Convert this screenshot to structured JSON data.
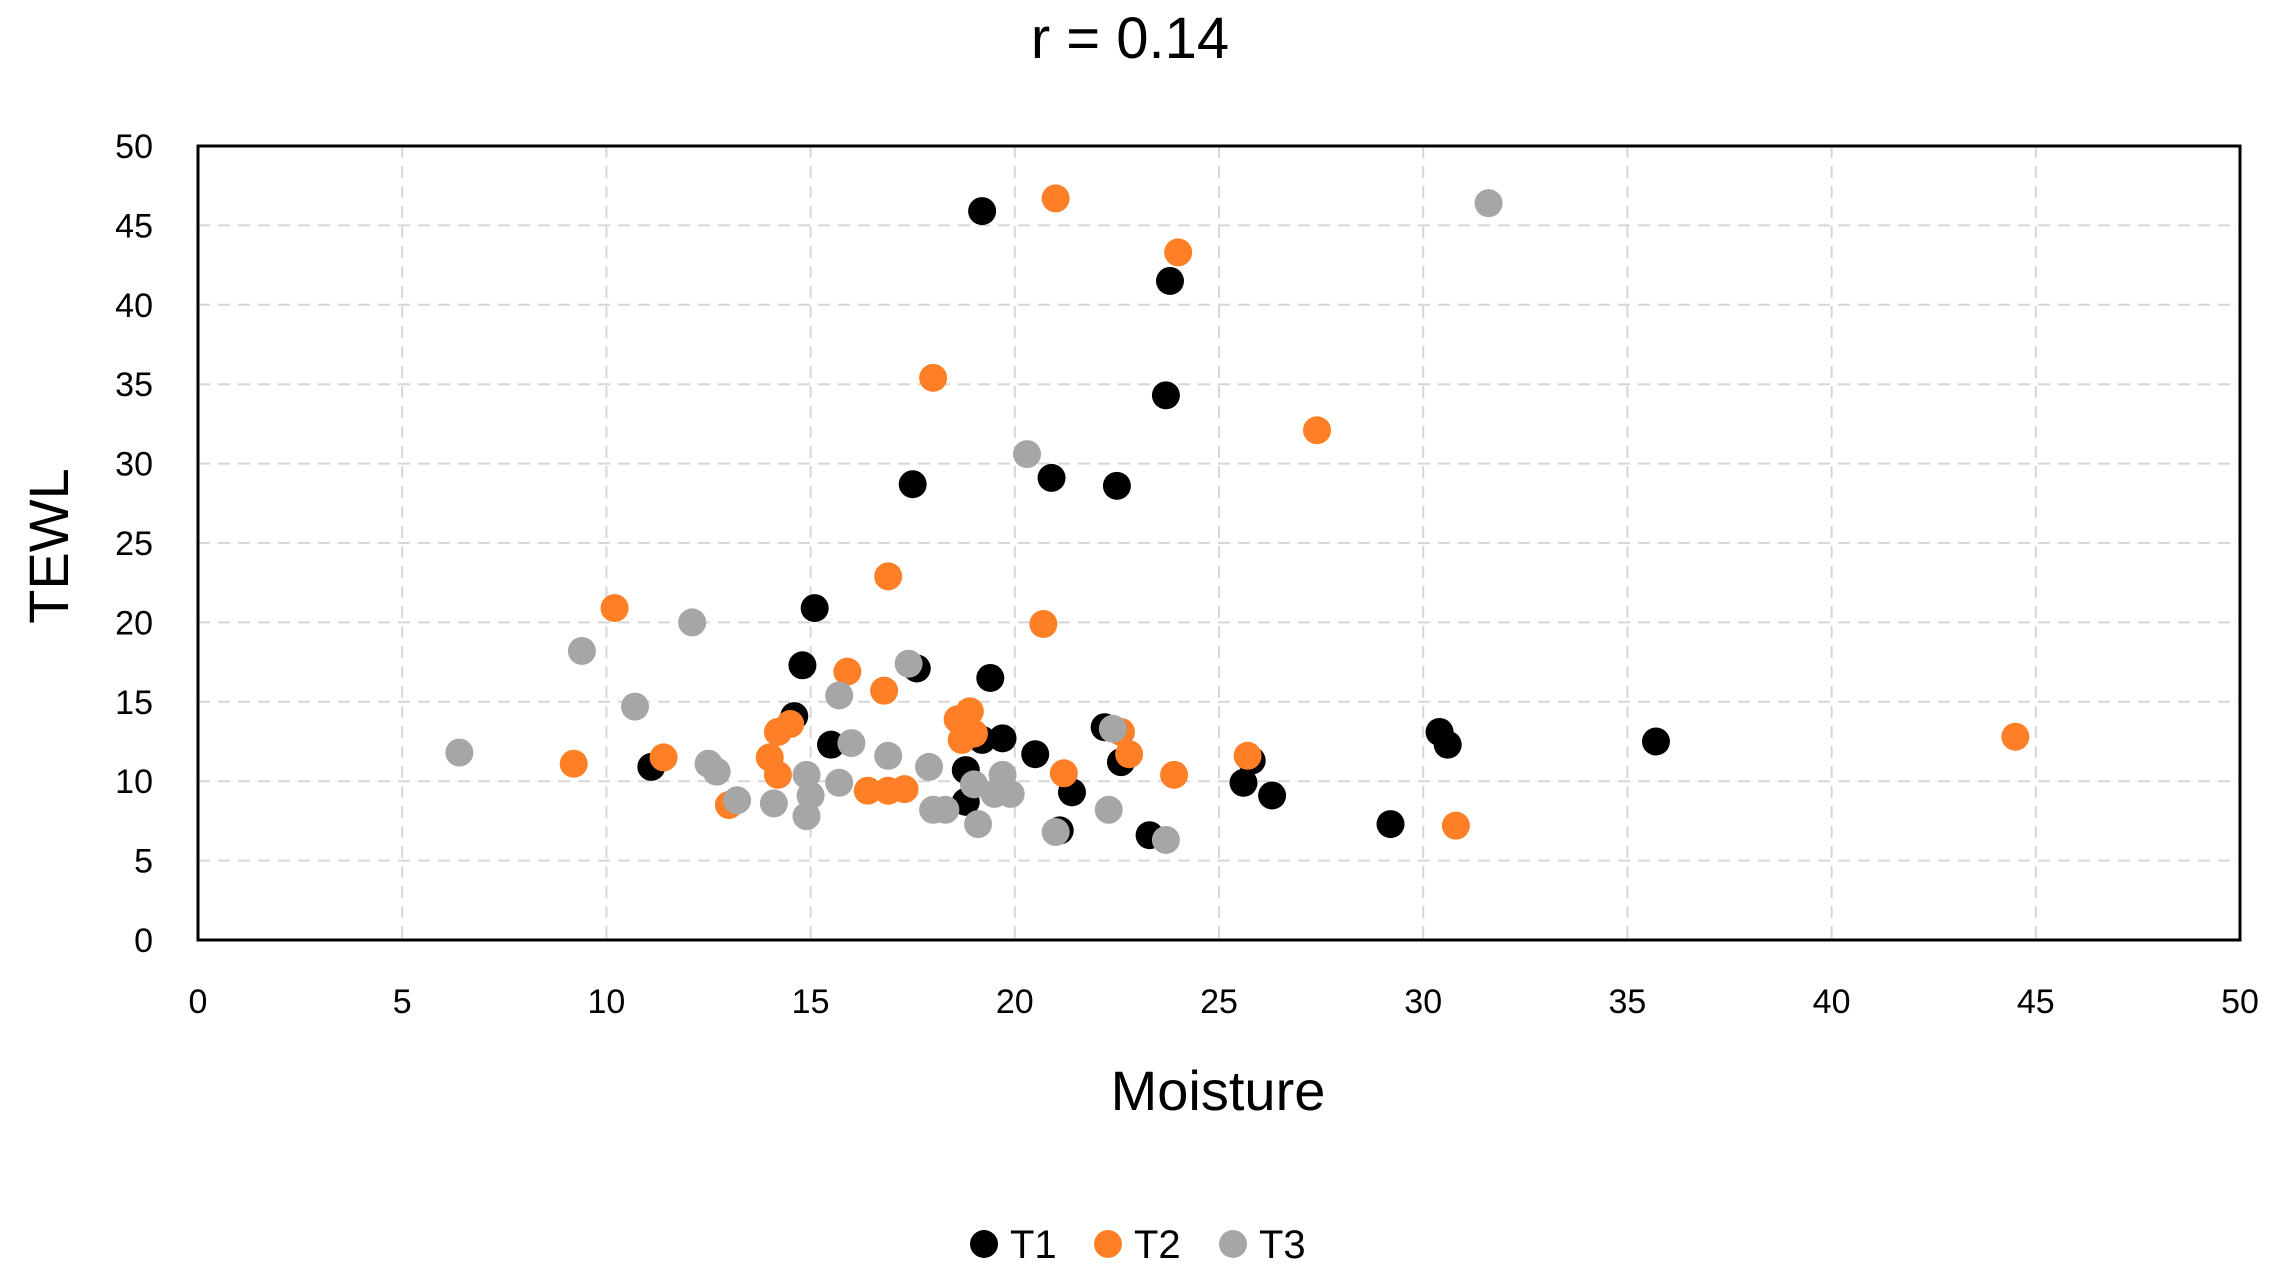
{
  "chart_data": {
    "type": "scatter",
    "title": "r = 0.14",
    "xlabel": "Moisture",
    "ylabel": "TEWL",
    "xlim": [
      0,
      50
    ],
    "ylim": [
      0,
      50
    ],
    "xticks": [
      0,
      5,
      10,
      15,
      20,
      25,
      30,
      35,
      40,
      45,
      50
    ],
    "yticks": [
      0,
      5,
      10,
      15,
      20,
      25,
      30,
      35,
      40,
      45,
      50
    ],
    "grid": true,
    "legend_position": "bottom",
    "series": [
      {
        "name": "T1",
        "color": "#000000",
        "points": [
          [
            19.2,
            45.9
          ],
          [
            23.8,
            41.5
          ],
          [
            23.7,
            34.3
          ],
          [
            17.5,
            28.7
          ],
          [
            20.9,
            29.1
          ],
          [
            22.5,
            28.6
          ],
          [
            15.1,
            20.9
          ],
          [
            14.8,
            17.3
          ],
          [
            17.6,
            17.1
          ],
          [
            19.4,
            16.5
          ],
          [
            14.6,
            14.1
          ],
          [
            15.5,
            12.3
          ],
          [
            19.7,
            12.7
          ],
          [
            20.5,
            11.7
          ],
          [
            22.2,
            13.4
          ],
          [
            22.6,
            11.2
          ],
          [
            18.8,
            10.7
          ],
          [
            19.2,
            12.6
          ],
          [
            21.4,
            9.3
          ],
          [
            21.1,
            6.9
          ],
          [
            23.3,
            6.6
          ],
          [
            25.6,
            9.9
          ],
          [
            25.8,
            11.3
          ],
          [
            26.3,
            9.1
          ],
          [
            29.2,
            7.3
          ],
          [
            30.4,
            13.1
          ],
          [
            30.6,
            12.3
          ],
          [
            35.7,
            12.5
          ],
          [
            11.1,
            10.9
          ],
          [
            18.8,
            8.7
          ]
        ]
      },
      {
        "name": "T2",
        "color": "#ff7f27",
        "points": [
          [
            21.0,
            46.7
          ],
          [
            24.0,
            43.3
          ],
          [
            18.0,
            35.4
          ],
          [
            27.4,
            32.1
          ],
          [
            16.9,
            22.9
          ],
          [
            20.7,
            19.9
          ],
          [
            10.2,
            20.9
          ],
          [
            15.9,
            16.9
          ],
          [
            16.8,
            15.7
          ],
          [
            14.5,
            13.6
          ],
          [
            14.2,
            13.1
          ],
          [
            18.6,
            13.9
          ],
          [
            18.9,
            14.4
          ],
          [
            18.7,
            12.6
          ],
          [
            19.0,
            13.0
          ],
          [
            14.0,
            11.5
          ],
          [
            14.2,
            10.4
          ],
          [
            11.4,
            11.5
          ],
          [
            9.2,
            11.1
          ],
          [
            13.0,
            8.5
          ],
          [
            16.4,
            9.4
          ],
          [
            16.9,
            9.4
          ],
          [
            17.3,
            9.5
          ],
          [
            21.2,
            10.5
          ],
          [
            22.6,
            13.1
          ],
          [
            22.8,
            11.7
          ],
          [
            23.9,
            10.4
          ],
          [
            25.7,
            11.6
          ],
          [
            30.8,
            7.2
          ],
          [
            44.5,
            12.8
          ]
        ]
      },
      {
        "name": "T3",
        "color": "#a6a6a6",
        "points": [
          [
            31.6,
            46.4
          ],
          [
            20.3,
            30.6
          ],
          [
            12.1,
            20.0
          ],
          [
            9.4,
            18.2
          ],
          [
            17.4,
            17.4
          ],
          [
            15.7,
            15.4
          ],
          [
            10.7,
            14.7
          ],
          [
            16.0,
            12.4
          ],
          [
            16.9,
            11.6
          ],
          [
            6.4,
            11.8
          ],
          [
            12.5,
            11.1
          ],
          [
            12.7,
            10.6
          ],
          [
            14.9,
            10.4
          ],
          [
            15.7,
            9.9
          ],
          [
            17.9,
            10.9
          ],
          [
            19.7,
            10.4
          ],
          [
            19.0,
            9.8
          ],
          [
            19.5,
            9.2
          ],
          [
            19.9,
            9.2
          ],
          [
            15.0,
            9.1
          ],
          [
            13.2,
            8.8
          ],
          [
            14.1,
            8.6
          ],
          [
            14.9,
            7.8
          ],
          [
            18.0,
            8.2
          ],
          [
            18.3,
            8.2
          ],
          [
            19.1,
            7.3
          ],
          [
            21.0,
            6.8
          ],
          [
            22.3,
            8.2
          ],
          [
            23.7,
            6.3
          ],
          [
            22.4,
            13.3
          ]
        ]
      }
    ]
  }
}
